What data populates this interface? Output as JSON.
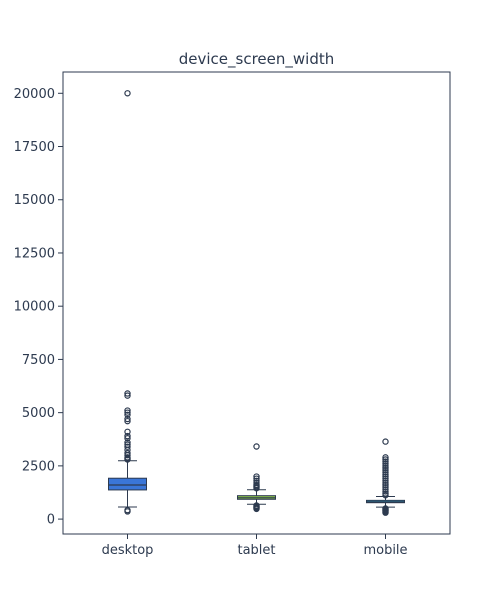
{
  "chart_data": {
    "type": "box",
    "title": "device_screen_width",
    "xlabel": "",
    "ylabel": "",
    "ylim": [
      -700,
      21000
    ],
    "yticks": [
      0,
      2500,
      5000,
      7500,
      10000,
      12500,
      15000,
      17500,
      20000
    ],
    "ytick_labels": [
      "0",
      "2500",
      "5000",
      "7500",
      "10000",
      "12500",
      "15000",
      "17500",
      "20000"
    ],
    "grid": false,
    "categories": [
      "desktop",
      "tablet",
      "mobile"
    ],
    "series": [
      {
        "category": "desktop",
        "color": "#3a76d8",
        "whisker_low": 570,
        "q1": 1370,
        "median": 1600,
        "q3": 1920,
        "whisker_high": 2740,
        "outliers": [
          360,
          420,
          2800,
          2850,
          2900,
          3000,
          3100,
          3250,
          3400,
          3500,
          3600,
          3800,
          3900,
          4100,
          4600,
          4700,
          4900,
          5000,
          5100,
          5800,
          5900,
          20000
        ]
      },
      {
        "category": "tablet",
        "color": "#8bc34a",
        "whisker_low": 700,
        "q1": 930,
        "median": 1000,
        "q3": 1100,
        "whisker_high": 1380,
        "outliers": [
          480,
          520,
          560,
          600,
          640,
          1450,
          1500,
          1550,
          1600,
          1700,
          1800,
          1900,
          2000,
          3410
        ]
      },
      {
        "category": "mobile",
        "color": "#29a9d6",
        "whisker_low": 560,
        "q1": 770,
        "median": 810,
        "q3": 880,
        "whisker_high": 1060,
        "outliers": [
          300,
          340,
          380,
          420,
          460,
          500,
          1120,
          1200,
          1300,
          1400,
          1500,
          1600,
          1700,
          1800,
          1900,
          2000,
          2100,
          2200,
          2300,
          2400,
          2500,
          2600,
          2700,
          2800,
          2900,
          3640
        ]
      }
    ]
  }
}
